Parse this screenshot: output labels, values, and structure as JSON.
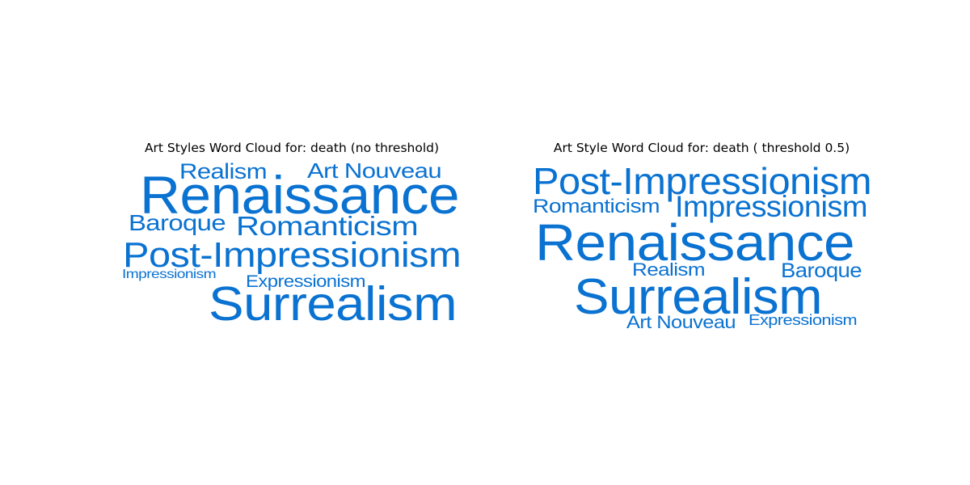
{
  "chart_data": [
    {
      "type": "wordcloud",
      "title": "Art Styles Word Cloud for: death (no threshold)",
      "color": "#0a72d1",
      "words": [
        {
          "text": "Renaissance",
          "weight": 1.0
        },
        {
          "text": "Surrealism",
          "weight": 0.86
        },
        {
          "text": "Post-Impressionism",
          "weight": 0.62
        },
        {
          "text": "Romanticism",
          "weight": 0.5
        },
        {
          "text": "Art Nouveau",
          "weight": 0.42
        },
        {
          "text": "Baroque",
          "weight": 0.42
        },
        {
          "text": "Realism",
          "weight": 0.42
        },
        {
          "text": "Expressionism",
          "weight": 0.33
        },
        {
          "text": "Impressionism",
          "weight": 0.27
        },
        {
          "text": "·",
          "weight": 0.2
        }
      ]
    },
    {
      "type": "wordcloud",
      "title": "Art Style Word Cloud for: death ( threshold 0.5)",
      "color": "#0a72d1",
      "words": [
        {
          "text": "Renaissance",
          "weight": 1.0
        },
        {
          "text": "Surrealism",
          "weight": 0.97
        },
        {
          "text": "Post-Impressionism",
          "weight": 0.72
        },
        {
          "text": "Impressionism",
          "weight": 0.63
        },
        {
          "text": "Romanticism",
          "weight": 0.45
        },
        {
          "text": "Baroque",
          "weight": 0.45
        },
        {
          "text": "Realism",
          "weight": 0.4
        },
        {
          "text": "Art Nouveau",
          "weight": 0.4
        },
        {
          "text": "Expressionism",
          "weight": 0.35
        }
      ]
    }
  ]
}
